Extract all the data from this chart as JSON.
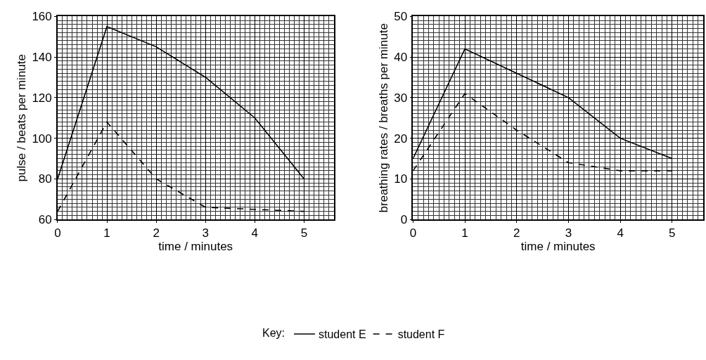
{
  "chart_data": [
    {
      "type": "line",
      "x": [
        0,
        1,
        2,
        3,
        4,
        5
      ],
      "xlabel": "time / minutes",
      "ylabel": "pulse / beats per minute",
      "xlim": [
        0,
        5.6
      ],
      "xticks": [
        0,
        1,
        2,
        3,
        4,
        5
      ],
      "ylim": [
        60,
        160
      ],
      "yticks": [
        60,
        80,
        100,
        120,
        140,
        160
      ],
      "grid": true,
      "legend": "bottom",
      "legend_title": "Key:",
      "series": [
        {
          "name": "student E",
          "color": "#000000",
          "line_style": "solid",
          "values": [
            80,
            155,
            145,
            130,
            110,
            80
          ]
        },
        {
          "name": "student F",
          "color": "#000000",
          "line_style": "dashed",
          "values": [
            64,
            108,
            80,
            66,
            65,
            64
          ]
        }
      ]
    },
    {
      "type": "line",
      "x": [
        0,
        1,
        2,
        3,
        4,
        5
      ],
      "xlabel": "time / minutes",
      "ylabel": "breathing rates / breaths per minute",
      "xlim": [
        0,
        5.6
      ],
      "xticks": [
        0,
        1,
        2,
        3,
        4,
        5
      ],
      "ylim": [
        0,
        50
      ],
      "yticks": [
        0,
        10,
        20,
        30,
        40,
        50
      ],
      "grid": true,
      "series": [
        {
          "color": "#000000",
          "line_style": "solid",
          "values": [
            15,
            42,
            36,
            30,
            20,
            15
          ]
        },
        {
          "color": "#000000",
          "line_style": "dashed",
          "values": [
            12,
            31,
            22,
            14,
            12,
            12
          ]
        }
      ]
    }
  ]
}
